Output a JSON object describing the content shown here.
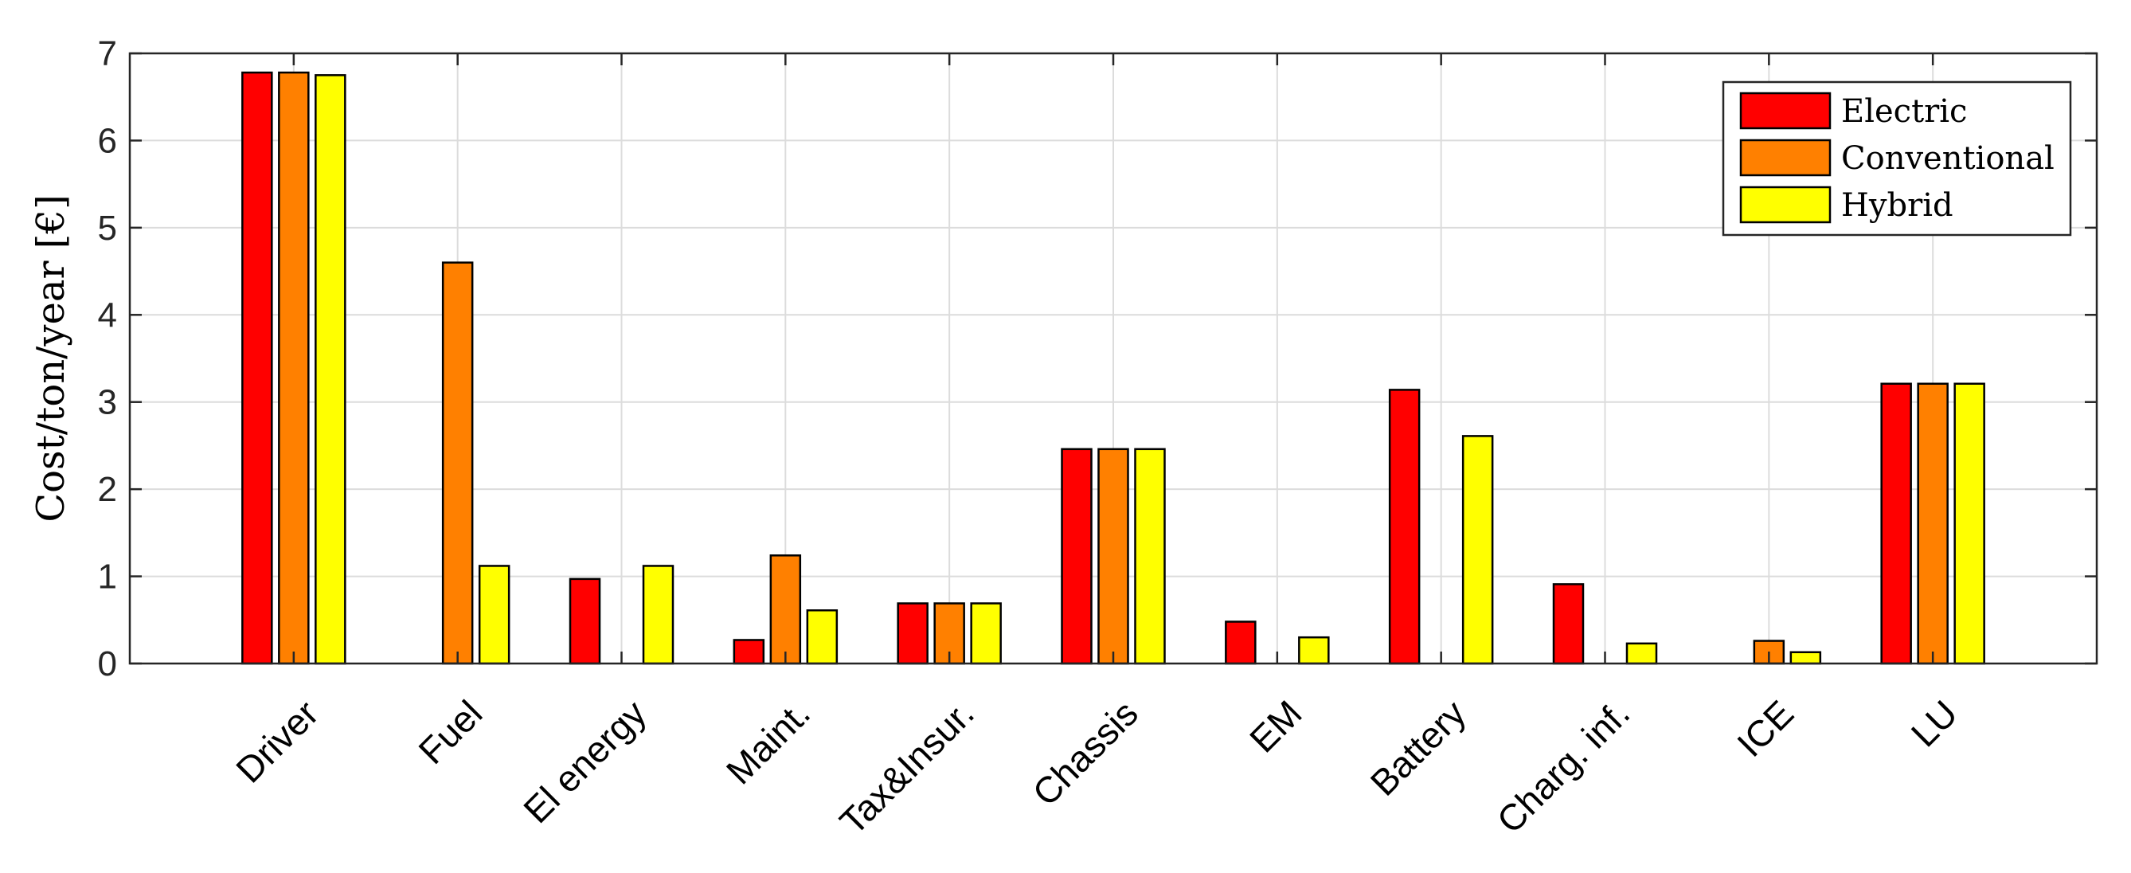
{
  "chart_data": {
    "type": "bar",
    "ylabel": "Cost/ton/year [€]",
    "xlabel": "",
    "ylim": [
      0,
      7
    ],
    "yticks": [
      0,
      1,
      2,
      3,
      4,
      5,
      6,
      7
    ],
    "grid": true,
    "legend_position": "top-right",
    "categories": [
      "Driver",
      "Fuel",
      "El energy",
      "Maint.",
      "Tax&Insur.",
      "Chassis",
      "EM",
      "Battery",
      "Charg. inf.",
      "ICE",
      "LU"
    ],
    "series": [
      {
        "name": "Electric",
        "color": "#ff0000",
        "values": [
          6.78,
          0,
          0.97,
          0.27,
          0.69,
          2.46,
          0.48,
          3.14,
          0.91,
          0,
          3.21
        ]
      },
      {
        "name": "Conventional",
        "color": "#ff8000",
        "values": [
          6.78,
          4.6,
          0,
          1.24,
          0.69,
          2.46,
          0,
          0,
          0,
          0.26,
          3.21
        ]
      },
      {
        "name": "Hybrid",
        "color": "#ffff00",
        "values": [
          6.75,
          1.12,
          1.12,
          0.61,
          0.69,
          2.46,
          0.3,
          2.61,
          0.23,
          0.13,
          3.21
        ]
      }
    ]
  }
}
